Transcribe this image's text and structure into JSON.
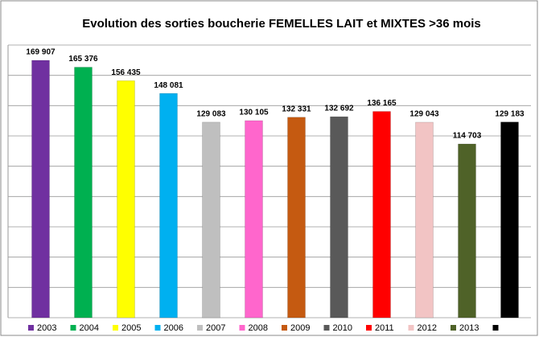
{
  "chart_data": {
    "type": "bar",
    "title": "Evolution des sorties boucherie FEMELLES LAIT et MIXTES >36 mois",
    "categories": [
      "2003",
      "2004",
      "2005",
      "2006",
      "2007",
      "2008",
      "2009",
      "2010",
      "2011",
      "2012",
      "2013",
      null
    ],
    "values": [
      169907,
      165376,
      156435,
      148081,
      129083,
      130105,
      132331,
      132692,
      136165,
      129043,
      114703,
      129183
    ],
    "value_labels": [
      "169 907",
      "165 376",
      "156 435",
      "148 081",
      "129 083",
      "130 105",
      "132 331",
      "132 692",
      "136 165",
      "129 043",
      "114 703",
      "129 183"
    ],
    "colors": [
      "#7030a0",
      "#00b050",
      "#ffff00",
      "#00b0f0",
      "#bfbfbf",
      "#ff66cc",
      "#c55a11",
      "#595959",
      "#ff0000",
      "#f2c4c4",
      "#4f6228",
      "#000000"
    ],
    "ylim": [
      0,
      180000
    ],
    "yticks": [
      0,
      20000,
      40000,
      60000,
      80000,
      100000,
      120000,
      140000,
      160000,
      180000
    ],
    "grid": true,
    "legend": "bottom"
  }
}
